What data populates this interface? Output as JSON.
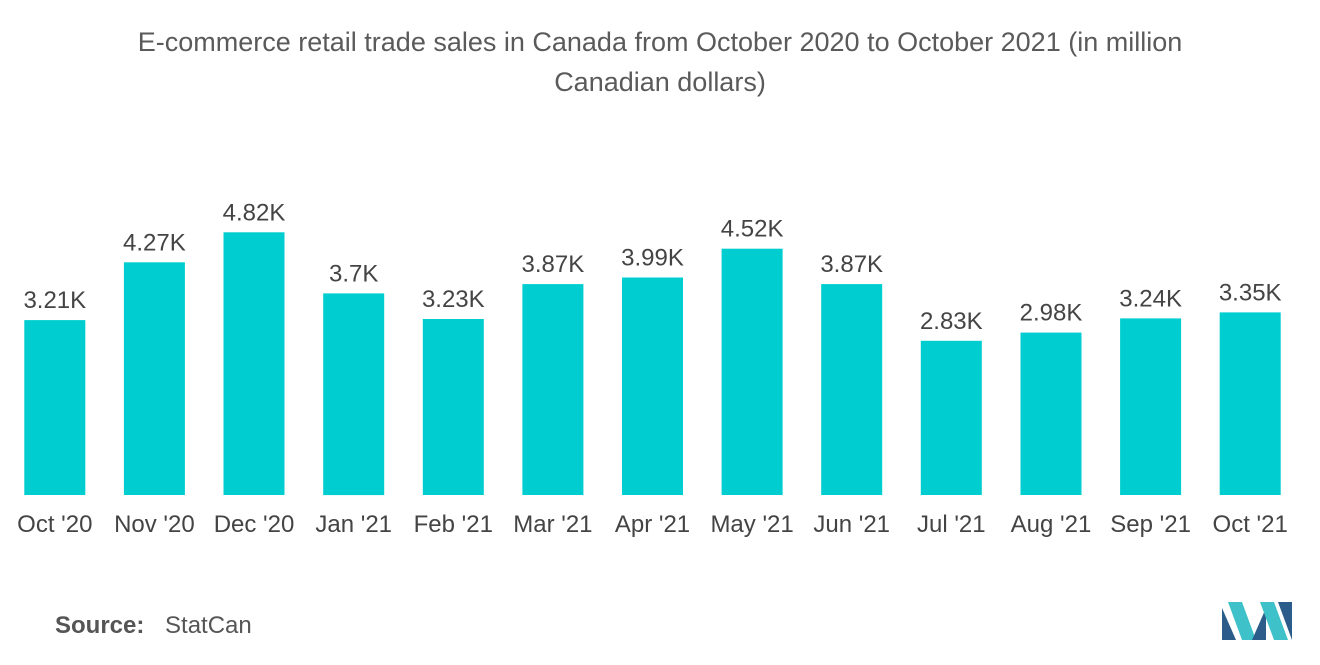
{
  "chart_data": {
    "type": "bar",
    "title_line1": "E-commerce retail trade sales in Canada from October 2020 to October 2021 (in million",
    "title_line2": "Canadian dollars)",
    "categories": [
      "Oct '20",
      "Nov '20",
      "Dec '20",
      "Jan '21",
      "Feb '21",
      "Mar '21",
      "Apr '21",
      "May '21",
      "Jun '21",
      "Jul '21",
      "Aug '21",
      "Sep '21",
      "Oct '21"
    ],
    "values": [
      3210,
      4270,
      4820,
      3700,
      3230,
      3870,
      3990,
      4520,
      3870,
      2830,
      2980,
      3240,
      3350
    ],
    "data_labels": [
      "3.21K",
      "4.27K",
      "4.82K",
      "3.7K",
      "3.23K",
      "3.87K",
      "3.99K",
      "4.52K",
      "3.87K",
      "2.83K",
      "2.98K",
      "3.24K",
      "3.35K"
    ],
    "xlabel": "",
    "ylabel": "",
    "ylim": [
      0,
      5000
    ],
    "grid": false,
    "bar_color": "#00cdd0"
  },
  "source": {
    "label": "Source:",
    "value": "StatCan"
  },
  "logo": {
    "icon": "mordor-intelligence-logo-icon",
    "color_dark": "#2b5c8a",
    "color_light": "#3fc1c9"
  }
}
